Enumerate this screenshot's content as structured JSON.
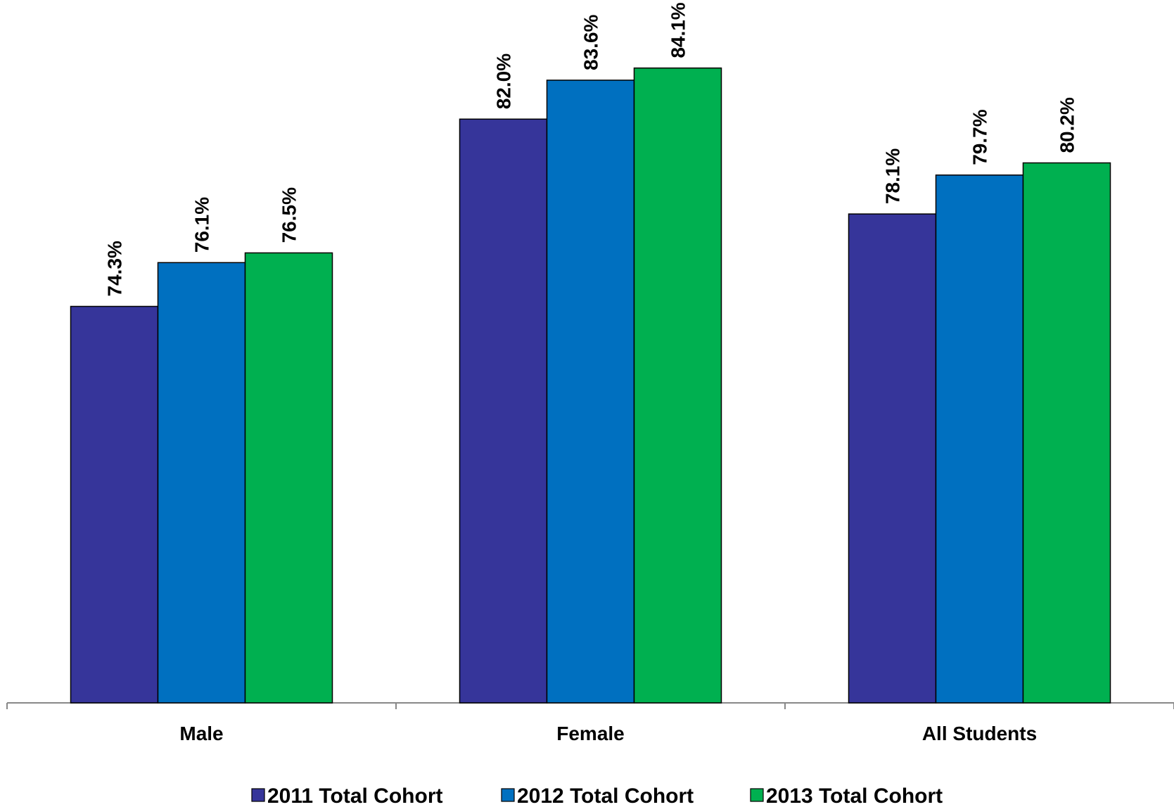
{
  "chart_data": {
    "type": "bar",
    "categories": [
      "Male",
      "Female",
      "All Students"
    ],
    "series": [
      {
        "name": "2011 Total Cohort",
        "color": "#36359A",
        "values": [
          74.3,
          82.0,
          78.1
        ],
        "labels": [
          "74.3%",
          "82.0%",
          "78.1%"
        ]
      },
      {
        "name": "2012 Total Cohort",
        "color": "#0070C0",
        "values": [
          76.1,
          83.6,
          79.7
        ],
        "labels": [
          "76.1%",
          "83.6%",
          "79.7%"
        ]
      },
      {
        "name": "2013 Total Cohort",
        "color": "#00B050",
        "values": [
          76.5,
          84.1,
          80.2
        ],
        "labels": [
          "76.5%",
          "84.1%",
          "80.2%"
        ]
      }
    ],
    "title": "",
    "xlabel": "",
    "ylabel": "",
    "ylim": [
      58,
      86
    ],
    "grid": false,
    "legend_position": "bottom"
  }
}
